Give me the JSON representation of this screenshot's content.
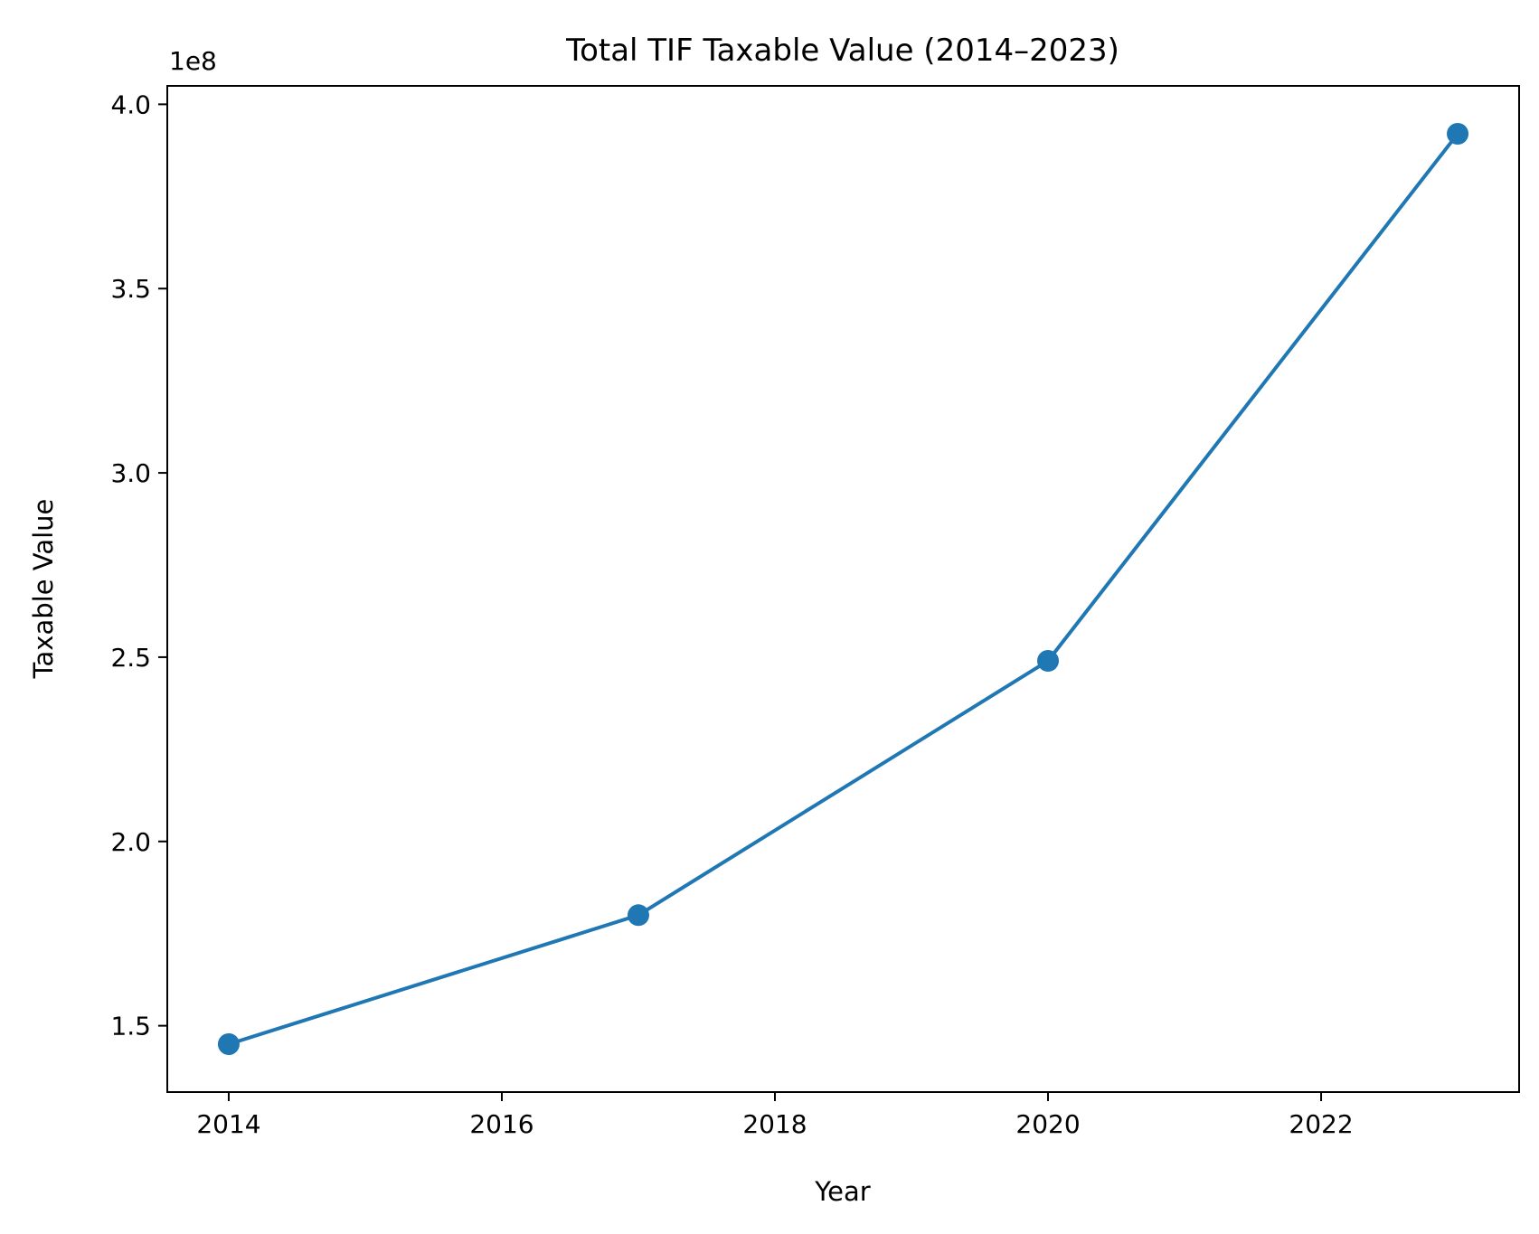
{
  "chart_data": {
    "type": "line",
    "title": "Total TIF Taxable Value (2014–2023)",
    "xlabel": "Year",
    "ylabel": "Taxable Value",
    "y_offset_label": "1e8",
    "x": [
      2014,
      2017,
      2020,
      2023
    ],
    "series": [
      {
        "values": [
          145000000,
          180000000,
          249000000,
          392000000
        ],
        "color": "#1f77b4",
        "marker": "circle"
      }
    ],
    "xlim": [
      2013.55,
      2023.45
    ],
    "ylim": [
      132000000,
      405000000
    ],
    "x_ticks": [
      2014,
      2016,
      2018,
      2020,
      2022
    ],
    "x_tick_labels": [
      "2014",
      "2016",
      "2018",
      "2020",
      "2022"
    ],
    "y_ticks": [
      150000000,
      200000000,
      250000000,
      300000000,
      350000000,
      400000000
    ],
    "y_tick_labels": [
      "1.5",
      "2.0",
      "2.5",
      "3.0",
      "3.5",
      "4.0"
    ],
    "grid": false,
    "legend": "none"
  }
}
